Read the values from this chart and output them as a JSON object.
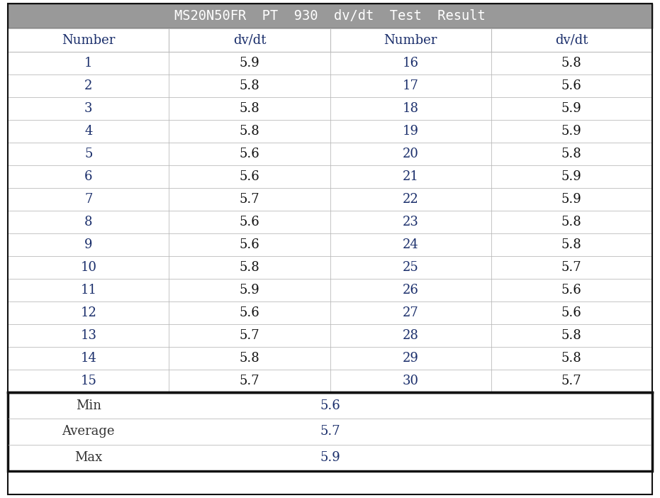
{
  "title": "MS20N50FR  PT  930  dv/dt  Test  Result",
  "title_bg": "#999999",
  "title_color": "#ffffff",
  "header_color": "#1a2e6b",
  "col_headers": [
    "Number",
    "dv/dt",
    "Number",
    "dv/dt"
  ],
  "left_numbers": [
    "1",
    "2",
    "3",
    "4",
    "5",
    "6",
    "7",
    "8",
    "9",
    "10",
    "11",
    "12",
    "13",
    "14",
    "15"
  ],
  "left_dvdt": [
    "5.9",
    "5.8",
    "5.8",
    "5.8",
    "5.6",
    "5.6",
    "5.7",
    "5.6",
    "5.6",
    "5.8",
    "5.9",
    "5.6",
    "5.7",
    "5.8",
    "5.7"
  ],
  "right_numbers": [
    "16",
    "17",
    "18",
    "19",
    "20",
    "21",
    "22",
    "23",
    "24",
    "25",
    "26",
    "27",
    "28",
    "29",
    "30"
  ],
  "right_dvdt": [
    "5.8",
    "5.6",
    "5.9",
    "5.9",
    "5.8",
    "5.9",
    "5.9",
    "5.8",
    "5.8",
    "5.7",
    "5.6",
    "5.6",
    "5.8",
    "5.8",
    "5.7"
  ],
  "stat_labels": [
    "Min",
    "Average",
    "Max"
  ],
  "stat_values": [
    "5.6",
    "5.7",
    "5.9"
  ],
  "number_color": "#1a2e6b",
  "data_color": "#111111",
  "stat_label_color": "#333333",
  "stat_value_color": "#1a2e6b",
  "line_color": "#bbbbbb",
  "thick_line_color": "#111111",
  "bg_color": "#ffffff",
  "fig_width": 9.31,
  "fig_height": 7.02,
  "dpi": 100
}
